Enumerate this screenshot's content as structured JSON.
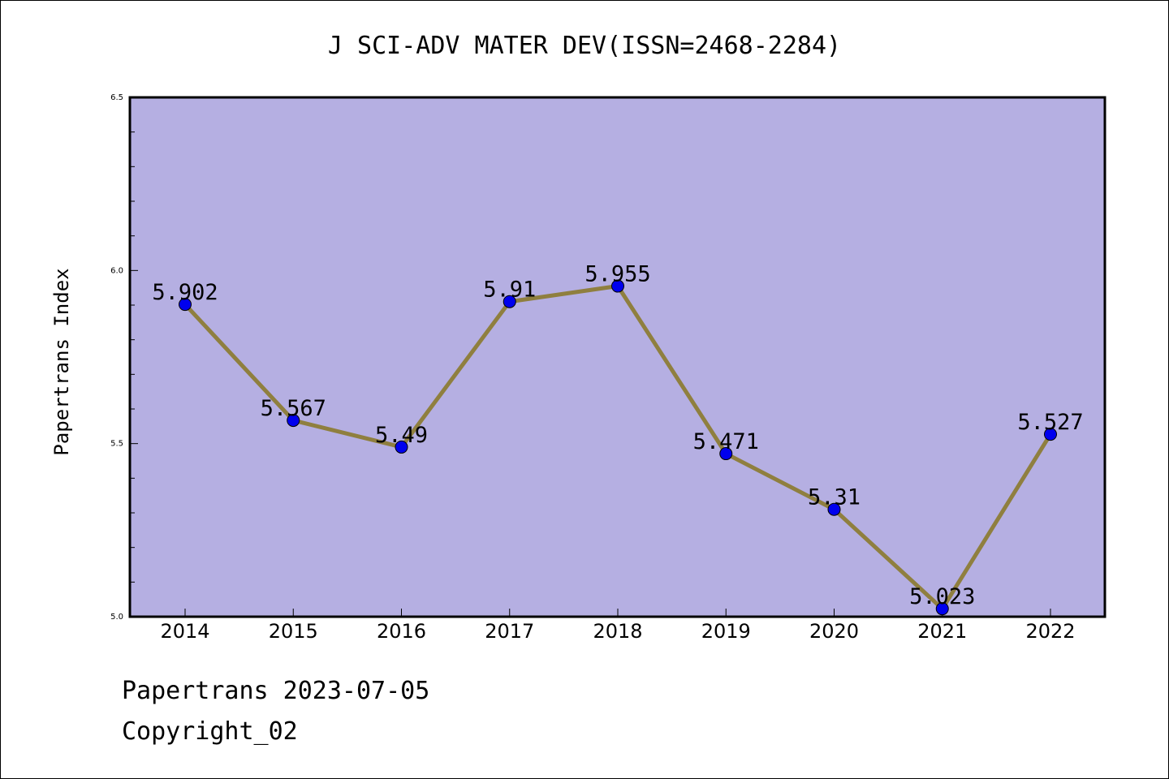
{
  "chart_data": {
    "type": "line",
    "title": "J SCI-ADV MATER DEV(ISSN=2468-2284)",
    "xlabel": "",
    "ylabel": "Papertrans Index",
    "categories": [
      "2014",
      "2015",
      "2016",
      "2017",
      "2018",
      "2019",
      "2020",
      "2021",
      "2022"
    ],
    "values": [
      5.902,
      5.567,
      5.49,
      5.91,
      5.955,
      5.471,
      5.31,
      5.023,
      5.527
    ],
    "data_labels": [
      "5.902",
      "5.567",
      "5.49",
      "5.91",
      "5.955",
      "5.471",
      "5.31",
      "5.023",
      "5.527"
    ],
    "ylim": [
      5.0,
      6.5
    ],
    "yticks": [
      "5.0",
      "5.5",
      "6.0",
      "6.5"
    ],
    "ytick_values": [
      5.0,
      5.5,
      6.0,
      6.5
    ],
    "grid": false,
    "colors": {
      "plot_background": "#b5afe2",
      "line": "#8f7f3f",
      "marker": "#0000ee"
    }
  },
  "footer": {
    "line1": "Papertrans 2023-07-05",
    "line2": "Copyright_02"
  }
}
